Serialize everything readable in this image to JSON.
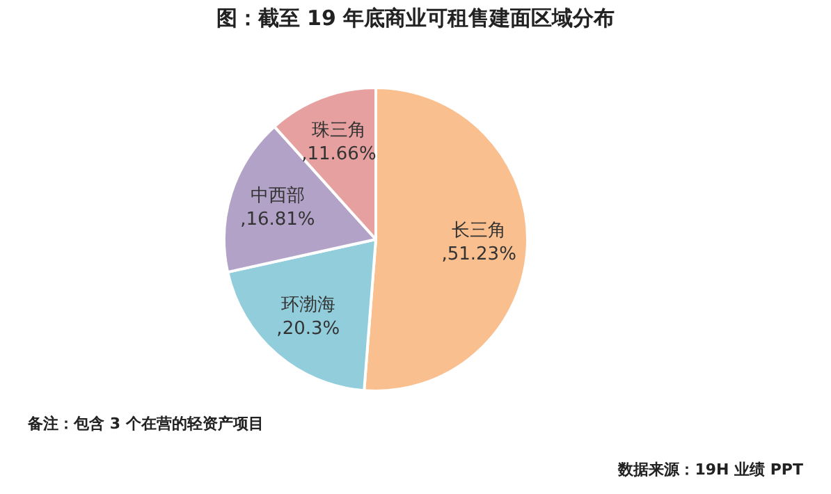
{
  "chart_data": {
    "type": "pie",
    "title": "图：截至 19 年底商业可租售建面区域分布",
    "categories": [
      "长三角",
      "环渤海",
      "中西部",
      "珠三角"
    ],
    "values": [
      51.23,
      20.3,
      16.81,
      11.66
    ],
    "colors": [
      "#f9bf8f",
      "#92cddc",
      "#b3a2c7",
      "#e6a0a0"
    ],
    "value_labels": [
      ",51.23%",
      ",20.3%",
      ",16.81%",
      ",11.66%"
    ],
    "legend": false,
    "annotations": [
      "备注：包含 3 个在营的轻资产项目",
      "数据来源：19H 业绩 PPT"
    ]
  }
}
